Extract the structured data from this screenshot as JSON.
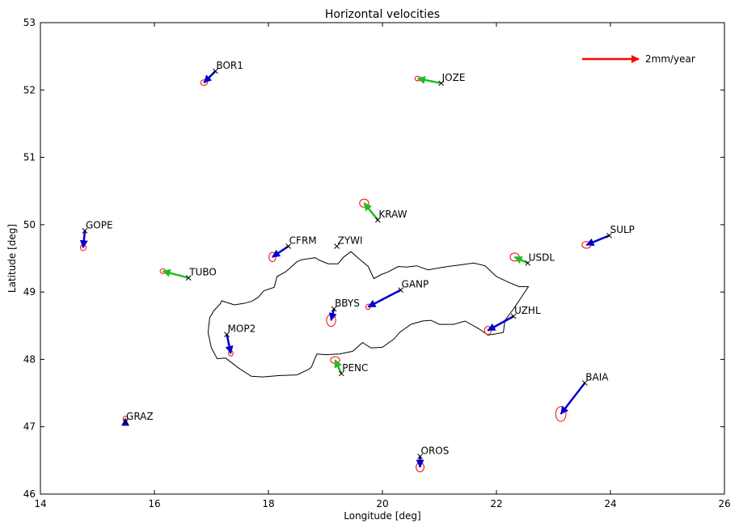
{
  "chart_data": {
    "type": "scatter",
    "title": "Horizontal velocities",
    "xlabel": "Longitude [deg]",
    "ylabel": "Latitude [deg]",
    "xlim": [
      14,
      26
    ],
    "ylim": [
      46,
      53
    ],
    "xticks": [
      "14",
      "16",
      "18",
      "20",
      "22",
      "24",
      "26"
    ],
    "yticks": [
      "46",
      "47",
      "48",
      "49",
      "50",
      "51",
      "52",
      "53"
    ],
    "grid": false,
    "legend": {
      "label": "2mm/year",
      "position": "top-right",
      "color": "#ff0000",
      "arrow_length_mm_per_year": 2
    },
    "arrow_colors": {
      "blue": "#0000cc",
      "green": "#22bb22"
    },
    "ellipse_color": "#ff0000",
    "marker_color": "#000000",
    "border_color": "#000000",
    "stations": [
      {
        "name": "BOR1",
        "lon": 17.07,
        "lat": 52.28,
        "end_lon": 16.87,
        "end_lat": 52.11,
        "color": "blue",
        "ell_rx": 0.06,
        "ell_ry": 0.04
      },
      {
        "name": "JOZE",
        "lon": 21.03,
        "lat": 52.1,
        "end_lon": 20.62,
        "end_lat": 52.17,
        "color": "green",
        "ell_rx": 0.05,
        "ell_ry": 0.035
      },
      {
        "name": "GOPE",
        "lon": 14.78,
        "lat": 49.91,
        "end_lon": 14.75,
        "end_lat": 49.66,
        "color": "blue",
        "ell_rx": 0.05,
        "ell_ry": 0.045
      },
      {
        "name": "CFRM",
        "lon": 18.35,
        "lat": 49.68,
        "end_lon": 18.07,
        "end_lat": 49.52,
        "color": "blue",
        "ell_rx": 0.06,
        "ell_ry": 0.07
      },
      {
        "name": "ZYWI",
        "lon": 19.2,
        "lat": 49.68,
        "end_lon": 19.2,
        "end_lat": 49.68,
        "color": "blue",
        "ell_rx": 0,
        "ell_ry": 0
      },
      {
        "name": "KRAW",
        "lon": 19.92,
        "lat": 50.07,
        "end_lon": 19.68,
        "end_lat": 50.32,
        "color": "green",
        "ell_rx": 0.08,
        "ell_ry": 0.06
      },
      {
        "name": "USDL",
        "lon": 22.55,
        "lat": 49.43,
        "end_lon": 22.32,
        "end_lat": 49.52,
        "color": "green",
        "ell_rx": 0.08,
        "ell_ry": 0.06
      },
      {
        "name": "SULP",
        "lon": 23.98,
        "lat": 49.84,
        "end_lon": 23.58,
        "end_lat": 49.7,
        "color": "blue",
        "ell_rx": 0.08,
        "ell_ry": 0.05
      },
      {
        "name": "TUBO",
        "lon": 16.6,
        "lat": 49.21,
        "end_lon": 16.15,
        "end_lat": 49.31,
        "color": "green",
        "ell_rx": 0.05,
        "ell_ry": 0.035
      },
      {
        "name": "GANP",
        "lon": 20.32,
        "lat": 49.03,
        "end_lon": 19.75,
        "end_lat": 48.78,
        "color": "blue",
        "ell_rx": 0.04,
        "ell_ry": 0.04
      },
      {
        "name": "BBYS",
        "lon": 19.15,
        "lat": 48.75,
        "end_lon": 19.1,
        "end_lat": 48.58,
        "color": "blue",
        "ell_rx": 0.08,
        "ell_ry": 0.09
      },
      {
        "name": "UZHL",
        "lon": 22.3,
        "lat": 48.64,
        "end_lon": 21.85,
        "end_lat": 48.43,
        "color": "blue",
        "ell_rx": 0.06,
        "ell_ry": 0.06
      },
      {
        "name": "MOP2",
        "lon": 17.27,
        "lat": 48.37,
        "end_lon": 17.34,
        "end_lat": 48.09,
        "color": "blue",
        "ell_rx": 0.04,
        "ell_ry": 0.04
      },
      {
        "name": "PENC",
        "lon": 19.28,
        "lat": 47.79,
        "end_lon": 19.17,
        "end_lat": 47.99,
        "color": "green",
        "ell_rx": 0.08,
        "ell_ry": 0.05
      },
      {
        "name": "BAIA",
        "lon": 23.55,
        "lat": 47.65,
        "end_lon": 23.13,
        "end_lat": 47.19,
        "color": "blue",
        "ell_rx": 0.09,
        "ell_ry": 0.11
      },
      {
        "name": "GRAZ",
        "lon": 15.49,
        "lat": 47.07,
        "end_lon": 15.49,
        "end_lat": 47.12,
        "color": "blue",
        "ell_rx": 0.04,
        "ell_ry": 0.035
      },
      {
        "name": "OROS",
        "lon": 20.66,
        "lat": 46.56,
        "end_lon": 20.66,
        "end_lat": 46.4,
        "color": "blue",
        "ell_rx": 0.07,
        "ell_ry": 0.07
      }
    ],
    "border_outline": [
      [
        17.15,
        48.82
      ],
      [
        17.18,
        48.87
      ],
      [
        17.4,
        48.81
      ],
      [
        17.56,
        48.83
      ],
      [
        17.7,
        48.86
      ],
      [
        17.82,
        48.92
      ],
      [
        17.92,
        49.02
      ],
      [
        18.1,
        49.07
      ],
      [
        18.15,
        49.23
      ],
      [
        18.3,
        49.3
      ],
      [
        18.5,
        49.45
      ],
      [
        18.58,
        49.48
      ],
      [
        18.82,
        49.51
      ],
      [
        18.9,
        49.47
      ],
      [
        19.05,
        49.42
      ],
      [
        19.22,
        49.42
      ],
      [
        19.32,
        49.52
      ],
      [
        19.45,
        49.6
      ],
      [
        19.58,
        49.5
      ],
      [
        19.75,
        49.38
      ],
      [
        19.85,
        49.2
      ],
      [
        19.98,
        49.26
      ],
      [
        20.1,
        49.3
      ],
      [
        20.28,
        49.38
      ],
      [
        20.42,
        49.37
      ],
      [
        20.6,
        49.39
      ],
      [
        20.8,
        49.33
      ],
      [
        21.0,
        49.36
      ],
      [
        21.15,
        49.38
      ],
      [
        21.35,
        49.4
      ],
      [
        21.6,
        49.43
      ],
      [
        21.8,
        49.39
      ],
      [
        22.0,
        49.23
      ],
      [
        22.2,
        49.15
      ],
      [
        22.4,
        49.08
      ],
      [
        22.56,
        49.08
      ],
      [
        22.42,
        48.9
      ],
      [
        22.3,
        48.75
      ],
      [
        22.15,
        48.58
      ],
      [
        22.12,
        48.4
      ],
      [
        22.0,
        48.38
      ],
      [
        21.85,
        48.36
      ],
      [
        21.7,
        48.45
      ],
      [
        21.45,
        48.57
      ],
      [
        21.25,
        48.52
      ],
      [
        21.0,
        48.52
      ],
      [
        20.85,
        48.58
      ],
      [
        20.7,
        48.57
      ],
      [
        20.5,
        48.52
      ],
      [
        20.3,
        48.4
      ],
      [
        20.2,
        48.3
      ],
      [
        20.0,
        48.18
      ],
      [
        19.8,
        48.17
      ],
      [
        19.65,
        48.25
      ],
      [
        19.48,
        48.12
      ],
      [
        19.25,
        48.08
      ],
      [
        19.0,
        48.07
      ],
      [
        18.85,
        48.08
      ],
      [
        18.75,
        47.88
      ],
      [
        18.7,
        47.85
      ],
      [
        18.5,
        47.77
      ],
      [
        18.2,
        47.76
      ],
      [
        17.9,
        47.74
      ],
      [
        17.7,
        47.75
      ],
      [
        17.48,
        47.87
      ],
      [
        17.25,
        48.02
      ],
      [
        17.1,
        48.01
      ],
      [
        17.0,
        48.17
      ],
      [
        16.94,
        48.4
      ],
      [
        16.97,
        48.62
      ],
      [
        17.05,
        48.73
      ],
      [
        17.15,
        48.82
      ]
    ]
  }
}
